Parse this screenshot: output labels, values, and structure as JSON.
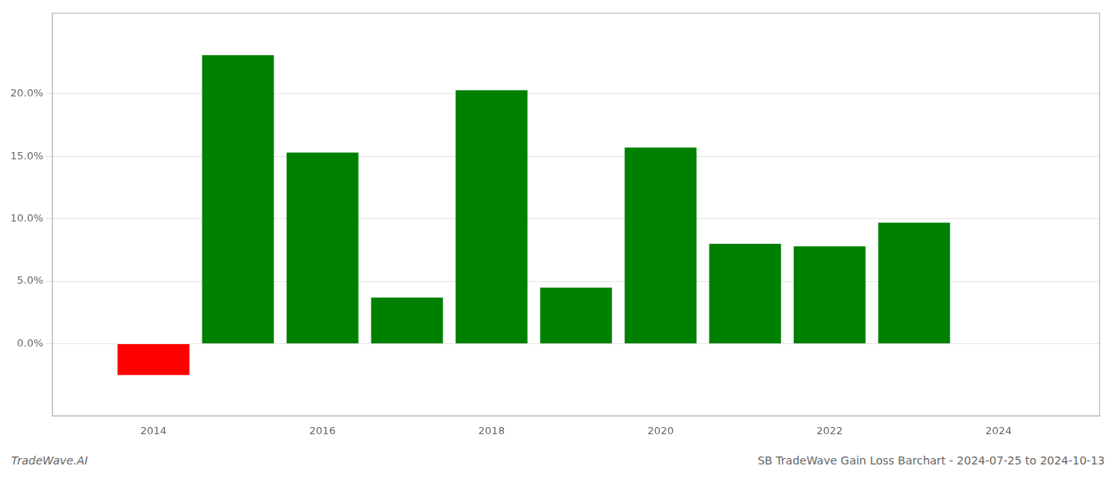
{
  "chart_data": {
    "type": "bar",
    "x": [
      2014,
      2015,
      2016,
      2017,
      2018,
      2019,
      2020,
      2021,
      2022,
      2023
    ],
    "values": [
      -0.025,
      0.231,
      0.153,
      0.037,
      0.203,
      0.045,
      0.157,
      0.08,
      0.078,
      0.097
    ],
    "colors": [
      "#ff0000",
      "#008000",
      "#008000",
      "#008000",
      "#008000",
      "#008000",
      "#008000",
      "#008000",
      "#008000",
      "#008000"
    ],
    "xlim": [
      2012.8,
      2025.2
    ],
    "xticks": [
      2014,
      2016,
      2018,
      2020,
      2022,
      2024
    ],
    "ylim": [
      -0.058,
      0.265
    ],
    "yticks": [
      {
        "value": 0.0,
        "label": "0.0%"
      },
      {
        "value": 0.05,
        "label": "5.0%"
      },
      {
        "value": 0.1,
        "label": "10.0%"
      },
      {
        "value": 0.15,
        "label": "15.0%"
      },
      {
        "value": 0.2,
        "label": "20.0%"
      }
    ],
    "grid": true,
    "annotations": [
      "TradeWave.AI",
      "SB TradeWave Gain Loss Barchart - 2024-07-25 to 2024-10-13"
    ]
  }
}
